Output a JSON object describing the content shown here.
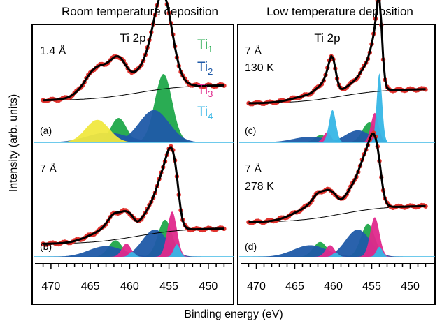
{
  "figure": {
    "ylabel": "Intensity (arb. units)",
    "xlabel": "Binding energy (eV)",
    "column_titles": [
      "Room temperature deposition",
      "Low temperature deposition"
    ],
    "legend": [
      {
        "base": "Ti",
        "sub": "1",
        "color": "#1fa84a"
      },
      {
        "base": "Ti",
        "sub": "2",
        "color": "#1f5aa8"
      },
      {
        "base": "Ti",
        "sub": "3",
        "color": "#e0288c"
      },
      {
        "base": "Ti",
        "sub": "4",
        "color": "#36b6e6"
      }
    ],
    "colors": {
      "data_points": "#e0312c",
      "fit_line": "#000000",
      "background_line": "#000000",
      "extra_component": "#f0e840"
    }
  },
  "chart_data": [
    {
      "type": "line",
      "panel": "(a)",
      "column": "Room temperature deposition",
      "title": "Ti 2p",
      "annotations": [
        "1.4 Å"
      ],
      "xlim": [
        471.5,
        447.5
      ],
      "xticks": [
        470,
        465,
        460,
        455,
        450
      ],
      "x_reversed": true,
      "components": [
        {
          "name": "Ti1",
          "center": 455.7,
          "width": 1.1,
          "height": 0.7
        },
        {
          "name": "Ti1",
          "center": 461.4,
          "width": 1.0,
          "height": 0.25
        },
        {
          "name": "Ti2",
          "center": 456.9,
          "width": 1.9,
          "height": 0.33
        },
        {
          "name": "Ti2",
          "center": 462.8,
          "width": 2.6,
          "height": 0.1
        },
        {
          "name": "yellow",
          "center": 464.1,
          "width": 1.5,
          "height": 0.23
        }
      ],
      "background_step": {
        "low": 0.05,
        "high": 0.34,
        "center": 459,
        "width": 3.0
      }
    },
    {
      "type": "line",
      "panel": "(b)",
      "column": "Room temperature deposition",
      "title": "",
      "annotations": [
        "7 Å"
      ],
      "xlim": [
        471.5,
        447.5
      ],
      "xticks": [
        470,
        465,
        460,
        455,
        450
      ],
      "x_reversed": true,
      "components": [
        {
          "name": "Ti1",
          "center": 455.5,
          "width": 0.9,
          "height": 0.45
        },
        {
          "name": "Ti1",
          "center": 461.8,
          "width": 0.9,
          "height": 0.2
        },
        {
          "name": "Ti2",
          "center": 456.8,
          "width": 1.6,
          "height": 0.33
        },
        {
          "name": "Ti2",
          "center": 463.0,
          "width": 2.2,
          "height": 0.13
        },
        {
          "name": "Ti3",
          "center": 454.6,
          "width": 0.6,
          "height": 0.55
        },
        {
          "name": "Ti3",
          "center": 460.4,
          "width": 0.6,
          "height": 0.16
        },
        {
          "name": "Ti4",
          "center": 454.0,
          "width": 0.4,
          "height": 0.15
        },
        {
          "name": "Ti4",
          "center": 459.7,
          "width": 0.4,
          "height": 0.06
        }
      ],
      "background_step": {
        "low": 0.05,
        "high": 0.4,
        "center": 459,
        "width": 3.0
      }
    },
    {
      "type": "line",
      "panel": "(c)",
      "column": "Low temperature deposition",
      "title": "Ti 2p",
      "annotations": [
        "7 Å",
        "130 K"
      ],
      "xlim": [
        471.5,
        447.5
      ],
      "xticks": [
        470,
        465,
        460,
        455,
        450
      ],
      "x_reversed": true,
      "components": [
        {
          "name": "Ti1",
          "center": 455.3,
          "width": 0.9,
          "height": 0.22
        },
        {
          "name": "Ti1",
          "center": 461.6,
          "width": 0.8,
          "height": 0.08
        },
        {
          "name": "Ti2",
          "center": 456.8,
          "width": 1.6,
          "height": 0.13
        },
        {
          "name": "Ti2",
          "center": 463.0,
          "width": 2.2,
          "height": 0.06
        },
        {
          "name": "Ti3",
          "center": 454.6,
          "width": 0.5,
          "height": 0.32
        },
        {
          "name": "Ti3",
          "center": 460.8,
          "width": 0.5,
          "height": 0.11
        },
        {
          "name": "Ti4",
          "center": 454.0,
          "width": 0.35,
          "height": 0.75
        },
        {
          "name": "Ti4",
          "center": 460.1,
          "width": 0.45,
          "height": 0.35
        }
      ],
      "background_step": {
        "low": 0.05,
        "high": 0.34,
        "center": 459,
        "width": 3.0
      }
    },
    {
      "type": "line",
      "panel": "(d)",
      "column": "Low temperature deposition",
      "title": "",
      "annotations": [
        "7 Å",
        "278 K"
      ],
      "xlim": [
        471.5,
        447.5
      ],
      "xticks": [
        470,
        465,
        460,
        455,
        450
      ],
      "x_reversed": true,
      "components": [
        {
          "name": "Ti1",
          "center": 455.5,
          "width": 0.9,
          "height": 0.4
        },
        {
          "name": "Ti1",
          "center": 461.7,
          "width": 0.9,
          "height": 0.18
        },
        {
          "name": "Ti2",
          "center": 456.8,
          "width": 1.6,
          "height": 0.33
        },
        {
          "name": "Ti2",
          "center": 463.0,
          "width": 2.2,
          "height": 0.14
        },
        {
          "name": "Ti3",
          "center": 454.6,
          "width": 0.6,
          "height": 0.48
        },
        {
          "name": "Ti3",
          "center": 460.4,
          "width": 0.6,
          "height": 0.14
        },
        {
          "name": "Ti4",
          "center": 454.0,
          "width": 0.4,
          "height": 0.12
        },
        {
          "name": "Ti4",
          "center": 459.7,
          "width": 0.4,
          "height": 0.05
        }
      ],
      "background_step": {
        "low": 0.05,
        "high": 0.42,
        "center": 459,
        "width": 3.0
      }
    }
  ]
}
